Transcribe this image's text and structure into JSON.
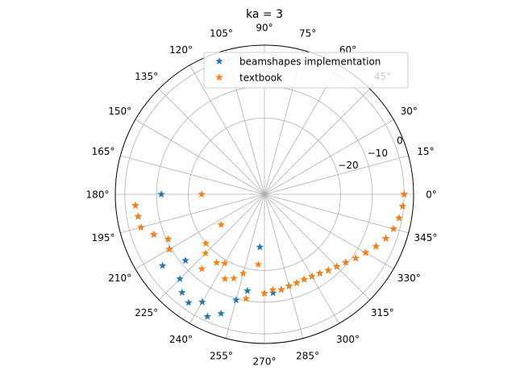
{
  "chart_data": {
    "type": "scatter",
    "projection": "polar",
    "title": "ka = 3",
    "theta_unit": "degrees",
    "theta_ticks": [
      "0°",
      "15°",
      "30°",
      "45°",
      "60°",
      "75°",
      "90°",
      "105°",
      "120°",
      "135°",
      "150°",
      "165°",
      "180°",
      "195°",
      "210°",
      "225°",
      "240°",
      "255°",
      "270°",
      "285°",
      "300°",
      "315°",
      "330°",
      "345°"
    ],
    "r_ticks": [
      -20,
      -10,
      0
    ],
    "rlim": [
      -44,
      3
    ],
    "grid": true,
    "legend": "upper-right",
    "marker": "star",
    "series": [
      {
        "name": "beamshapes implementation",
        "color": "#1f77b4",
        "theta": [
          0,
          5,
          10,
          15,
          20,
          25,
          30,
          35,
          40,
          45,
          50,
          55,
          60,
          65,
          70,
          75,
          80,
          85,
          90,
          95,
          100,
          105,
          110,
          115,
          120,
          125,
          130,
          135,
          140,
          145,
          150,
          155,
          160,
          165,
          170,
          175,
          180
        ],
        "r": [
          0.0,
          -0.3,
          -0.9,
          -1.9,
          -3.3,
          -5.2,
          -7.2,
          -8.9,
          -10.6,
          -11.8,
          -12.7,
          -13.6,
          -14.1,
          -14.4,
          -14.3,
          -14.1,
          -13.5,
          -12.8,
          -12.8,
          -27.3,
          -13.1,
          -9.5,
          -4.0,
          -1.5,
          -4.8,
          -2.3,
          -3.6,
          -6.3,
          -11.5,
          -4.8,
          -9.4,
          -10.5,
          -6.9,
          -3.7,
          -3.6,
          -3.2,
          -11.5
        ]
      },
      {
        "name": "textbook",
        "color": "#ff7f0e",
        "theta": [
          0,
          5,
          10,
          15,
          20,
          25,
          30,
          35,
          40,
          45,
          50,
          55,
          60,
          65,
          70,
          75,
          80,
          85,
          90,
          95,
          100,
          105,
          110,
          115,
          120,
          125,
          130,
          135,
          140,
          145,
          150,
          155,
          160,
          165,
          170,
          175,
          180
        ],
        "r": [
          0.0,
          -0.3,
          -0.9,
          -1.9,
          -3.3,
          -5.2,
          -7.2,
          -8.9,
          -10.6,
          -11.8,
          -12.7,
          -13.6,
          -14.1,
          -14.4,
          -14.3,
          -14.1,
          -13.5,
          -13.8,
          -12.8,
          -21.8,
          -10.6,
          -18.2,
          -15.8,
          -14.6,
          -18.9,
          -17.7,
          -13.3,
          -17.7,
          -19.9,
          -27.3,
          -9.4,
          -10.5,
          -6.9,
          -3.7,
          -3.6,
          -3.2,
          -24.2
        ]
      }
    ]
  }
}
